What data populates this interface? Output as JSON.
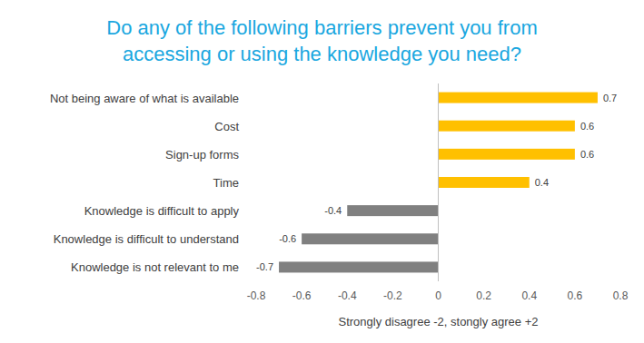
{
  "chart_data": {
    "type": "bar",
    "orientation": "horizontal",
    "title": "Do any of the following barriers prevent you from accessing or using the knowledge you need?",
    "x_label": "Strongly disagree -2, stongly agree +2",
    "categories": [
      "Not being aware of what is available",
      "Cost",
      "Sign-up forms",
      "Time",
      "Knowledge is difficult to apply",
      "Knowledge is difficult to understand",
      "Knowledge is not relevant to me"
    ],
    "values": [
      0.7,
      0.6,
      0.6,
      0.4,
      -0.4,
      -0.6,
      -0.7
    ],
    "colors": [
      "#ffc000",
      "#ffc000",
      "#ffc000",
      "#ffc000",
      "#808080",
      "#808080",
      "#808080"
    ],
    "xlim": [
      -0.8,
      0.8
    ],
    "xticks": [
      -0.8,
      -0.6,
      -0.4,
      -0.2,
      0,
      0.2,
      0.4,
      0.6,
      0.8
    ],
    "grid": false,
    "data_labels": true
  }
}
